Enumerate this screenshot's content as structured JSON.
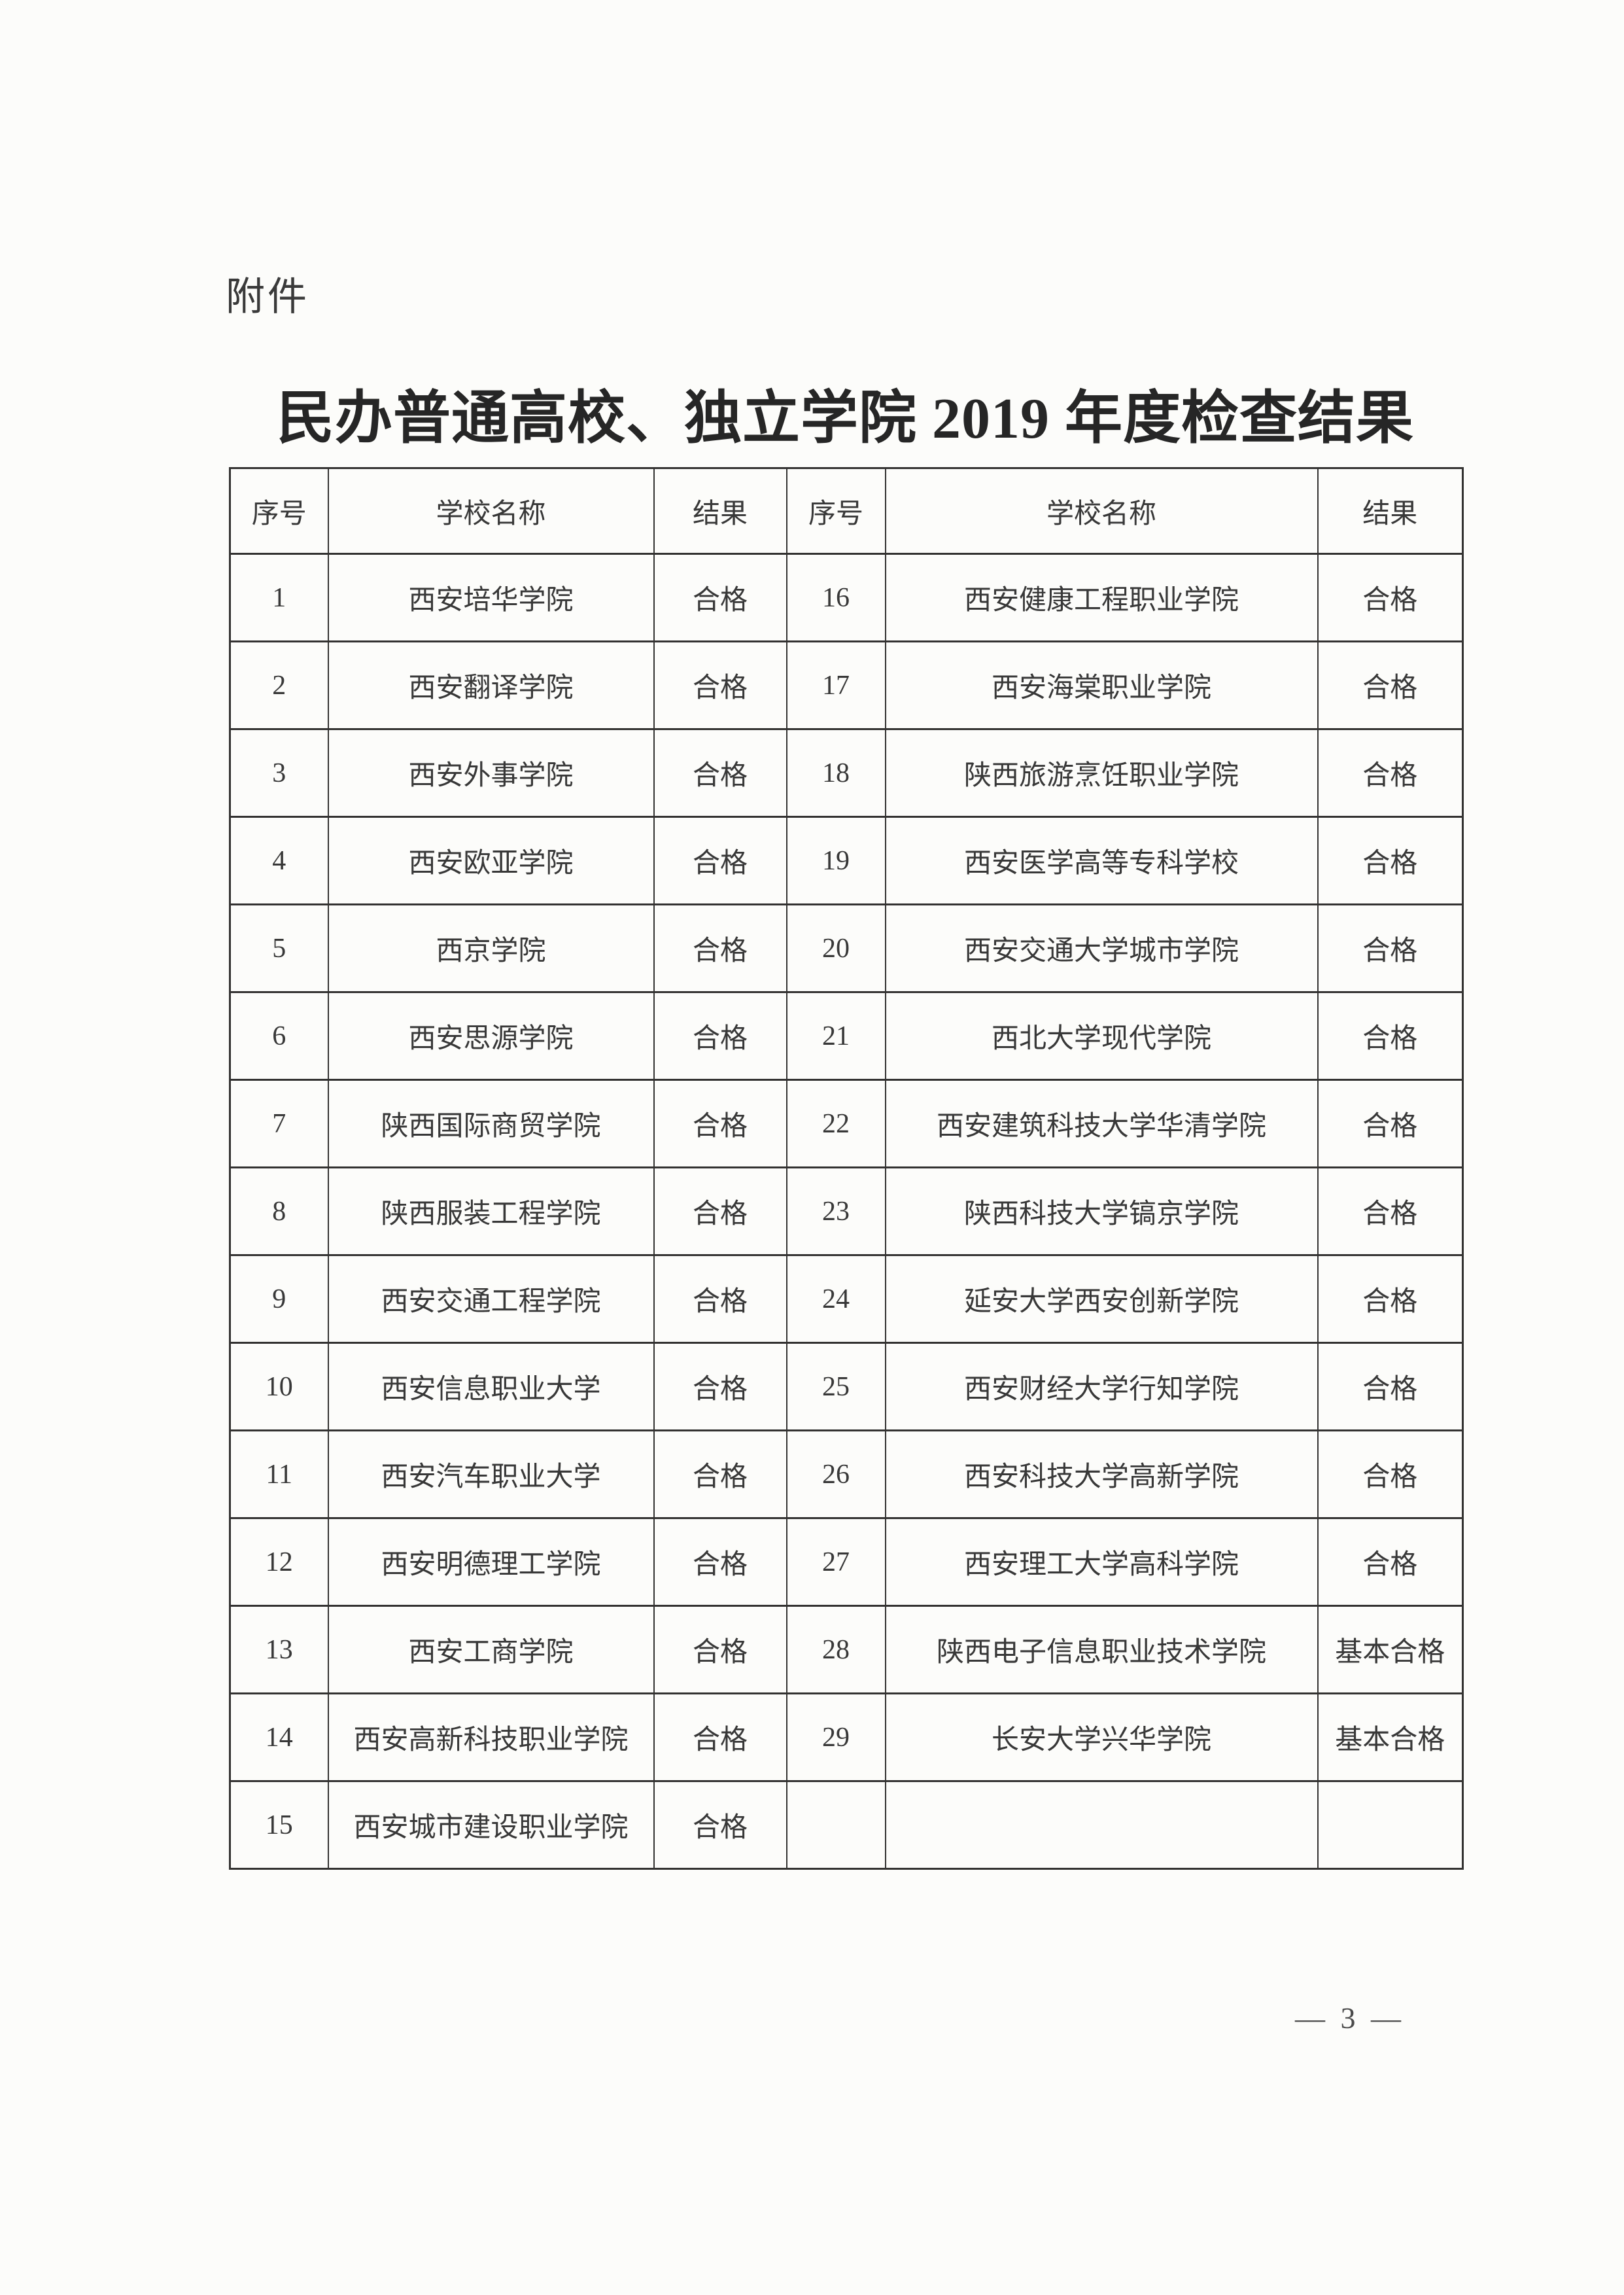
{
  "page": {
    "attachment_label": "附件",
    "title": "民办普通高校、独立学院 2019 年度检查结果",
    "page_number": "— 3 —"
  },
  "table": {
    "headers": [
      "序号",
      "学校名称",
      "结果",
      "序号",
      "学校名称",
      "结果"
    ],
    "rows": [
      {
        "no_left": "1",
        "school_left": "西安培华学院",
        "result_left": "合格",
        "no_right": "16",
        "school_right": "西安健康工程职业学院",
        "result_right": "合格"
      },
      {
        "no_left": "2",
        "school_left": "西安翻译学院",
        "result_left": "合格",
        "no_right": "17",
        "school_right": "西安海棠职业学院",
        "result_right": "合格"
      },
      {
        "no_left": "3",
        "school_left": "西安外事学院",
        "result_left": "合格",
        "no_right": "18",
        "school_right": "陕西旅游烹饪职业学院",
        "result_right": "合格"
      },
      {
        "no_left": "4",
        "school_left": "西安欧亚学院",
        "result_left": "合格",
        "no_right": "19",
        "school_right": "西安医学高等专科学校",
        "result_right": "合格"
      },
      {
        "no_left": "5",
        "school_left": "西京学院",
        "result_left": "合格",
        "no_right": "20",
        "school_right": "西安交通大学城市学院",
        "result_right": "合格"
      },
      {
        "no_left": "6",
        "school_left": "西安思源学院",
        "result_left": "合格",
        "no_right": "21",
        "school_right": "西北大学现代学院",
        "result_right": "合格"
      },
      {
        "no_left": "7",
        "school_left": "陕西国际商贸学院",
        "result_left": "合格",
        "no_right": "22",
        "school_right": "西安建筑科技大学华清学院",
        "result_right": "合格"
      },
      {
        "no_left": "8",
        "school_left": "陕西服装工程学院",
        "result_left": "合格",
        "no_right": "23",
        "school_right": "陕西科技大学镐京学院",
        "result_right": "合格"
      },
      {
        "no_left": "9",
        "school_left": "西安交通工程学院",
        "result_left": "合格",
        "no_right": "24",
        "school_right": "延安大学西安创新学院",
        "result_right": "合格"
      },
      {
        "no_left": "10",
        "school_left": "西安信息职业大学",
        "result_left": "合格",
        "no_right": "25",
        "school_right": "西安财经大学行知学院",
        "result_right": "合格"
      },
      {
        "no_left": "11",
        "school_left": "西安汽车职业大学",
        "result_left": "合格",
        "no_right": "26",
        "school_right": "西安科技大学高新学院",
        "result_right": "合格"
      },
      {
        "no_left": "12",
        "school_left": "西安明德理工学院",
        "result_left": "合格",
        "no_right": "27",
        "school_right": "西安理工大学高科学院",
        "result_right": "合格"
      },
      {
        "no_left": "13",
        "school_left": "西安工商学院",
        "result_left": "合格",
        "no_right": "28",
        "school_right": "陕西电子信息职业技术学院",
        "result_right": "基本合格"
      },
      {
        "no_left": "14",
        "school_left": "西安高新科技职业学院",
        "result_left": "合格",
        "no_right": "29",
        "school_right": "长安大学兴华学院",
        "result_right": "基本合格"
      },
      {
        "no_left": "15",
        "school_left": "西安城市建设职业学院",
        "result_left": "合格",
        "no_right": "",
        "school_right": "",
        "result_right": ""
      }
    ]
  }
}
